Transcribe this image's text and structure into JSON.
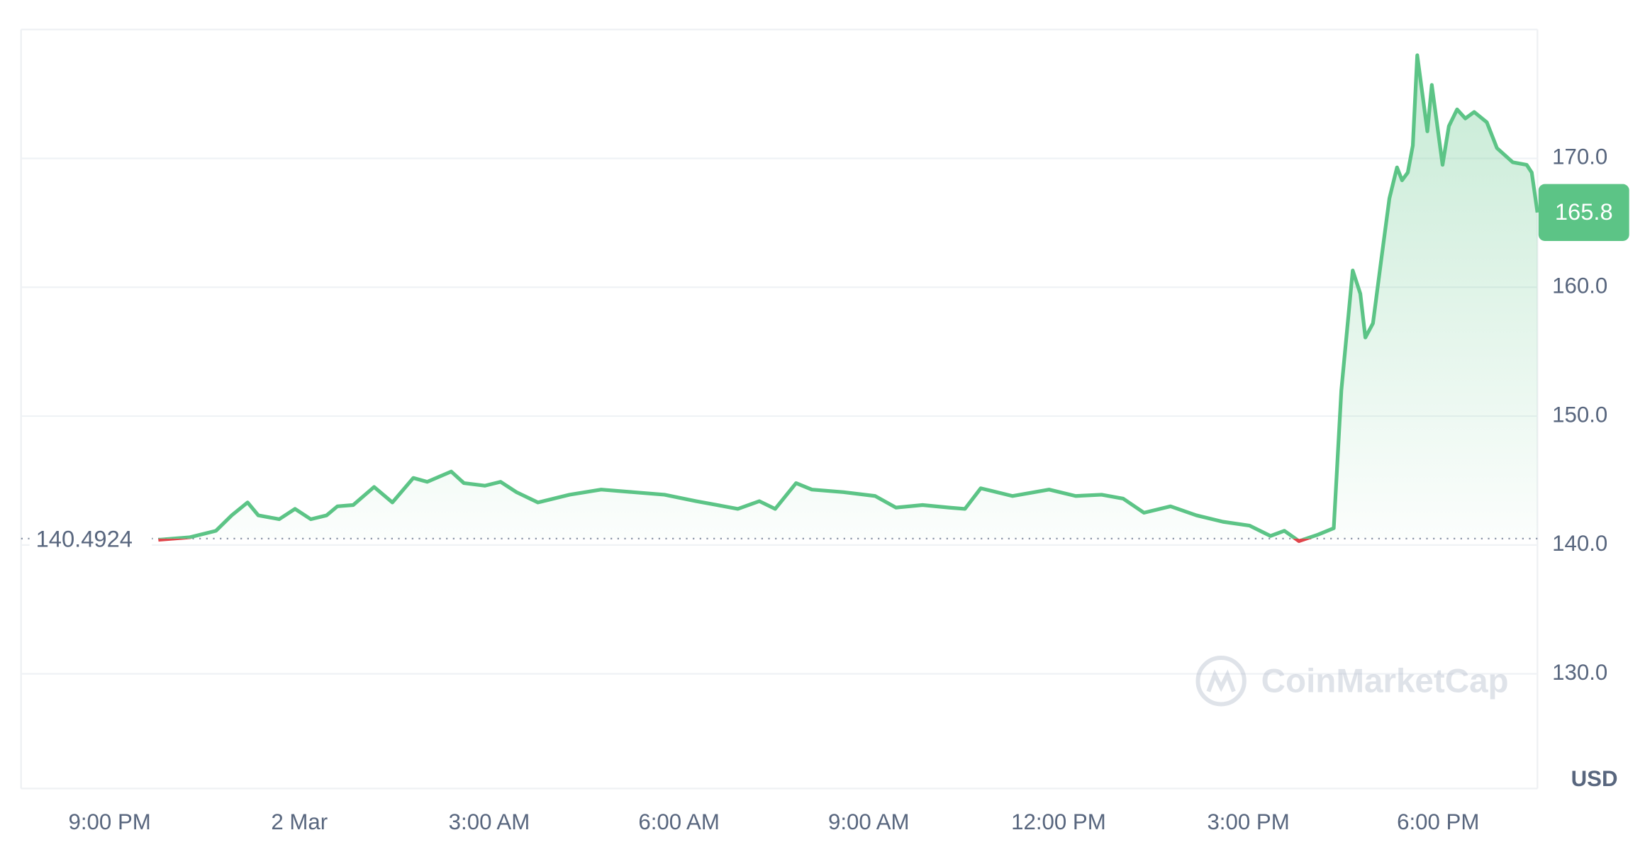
{
  "chart_data": {
    "type": "line",
    "x": [
      0.77,
      1.27,
      1.68,
      1.93,
      2.18,
      2.35,
      2.68,
      2.93,
      3.18,
      3.43,
      3.6,
      3.85,
      4.18,
      4.47,
      4.8,
      5.02,
      5.4,
      5.6,
      5.93,
      6.18,
      6.43,
      6.77,
      7.27,
      7.77,
      8.27,
      8.77,
      9.27,
      9.6,
      9.93,
      10.27,
      10.52,
      10.85,
      11.1,
      11.6,
      12.1,
      12.43,
      12.85,
      13.27,
      13.52,
      13.77,
      14.27,
      14.85,
      15.27,
      15.68,
      16.02,
      16.35,
      16.77,
      17.18,
      17.6,
      18.02,
      18.35,
      18.57,
      18.8,
      19.1,
      19.35,
      19.47,
      19.65,
      19.77,
      19.85,
      19.97,
      20.1,
      20.23,
      20.35,
      20.43,
      20.52,
      20.6,
      20.67,
      20.83,
      20.9,
      21.07,
      21.17,
      21.3,
      21.43,
      21.57,
      21.77,
      21.93,
      22.18,
      22.4,
      22.48,
      22.57
    ],
    "values": [
      140.4,
      140.6,
      141.1,
      142.3,
      143.3,
      142.3,
      142.0,
      142.8,
      142.0,
      142.3,
      143.0,
      143.1,
      144.5,
      143.3,
      145.2,
      144.9,
      145.7,
      144.8,
      144.6,
      144.9,
      144.1,
      143.3,
      143.9,
      144.3,
      144.1,
      143.9,
      143.4,
      143.1,
      142.8,
      143.4,
      142.8,
      144.8,
      144.3,
      144.1,
      143.8,
      142.9,
      143.1,
      142.9,
      142.8,
      144.4,
      143.8,
      144.3,
      143.8,
      143.9,
      143.6,
      142.5,
      143.0,
      142.3,
      141.8,
      141.5,
      140.7,
      141.1,
      140.3,
      140.8,
      141.3,
      152.0,
      161.3,
      159.5,
      156.1,
      157.2,
      162.1,
      166.9,
      169.3,
      168.3,
      168.9,
      171.0,
      178.0,
      172.1,
      175.7,
      169.5,
      172.5,
      173.8,
      173.1,
      173.6,
      172.8,
      170.8,
      169.7,
      169.5,
      168.9,
      165.8
    ],
    "up_color": "#5cc486",
    "down_color": "#e0464c",
    "baseline": {
      "value": 140.4924,
      "label": "140.4924"
    },
    "current_price": 165.8,
    "xlim": [
      -1.4,
      22.57
    ],
    "xticks": [
      {
        "value": 0,
        "label": "9:00 PM"
      },
      {
        "value": 3,
        "label": "2 Mar"
      },
      {
        "value": 6,
        "label": "3:00 AM"
      },
      {
        "value": 9,
        "label": "6:00 AM"
      },
      {
        "value": 12,
        "label": "9:00 AM"
      },
      {
        "value": 15,
        "label": "12:00 PM"
      },
      {
        "value": 18,
        "label": "3:00 PM"
      },
      {
        "value": 21,
        "label": "6:00 PM"
      }
    ],
    "ylim": [
      121.1,
      180
    ],
    "yticks": [
      {
        "value": 130,
        "label": "130.0"
      },
      {
        "value": 140,
        "label": "140.0"
      },
      {
        "value": 150,
        "label": "150.0"
      },
      {
        "value": 160,
        "label": "160.0"
      },
      {
        "value": 170,
        "label": "170.0"
      }
    ],
    "y_label": "USD",
    "watermark": "CoinMarketCap",
    "grid": true
  }
}
